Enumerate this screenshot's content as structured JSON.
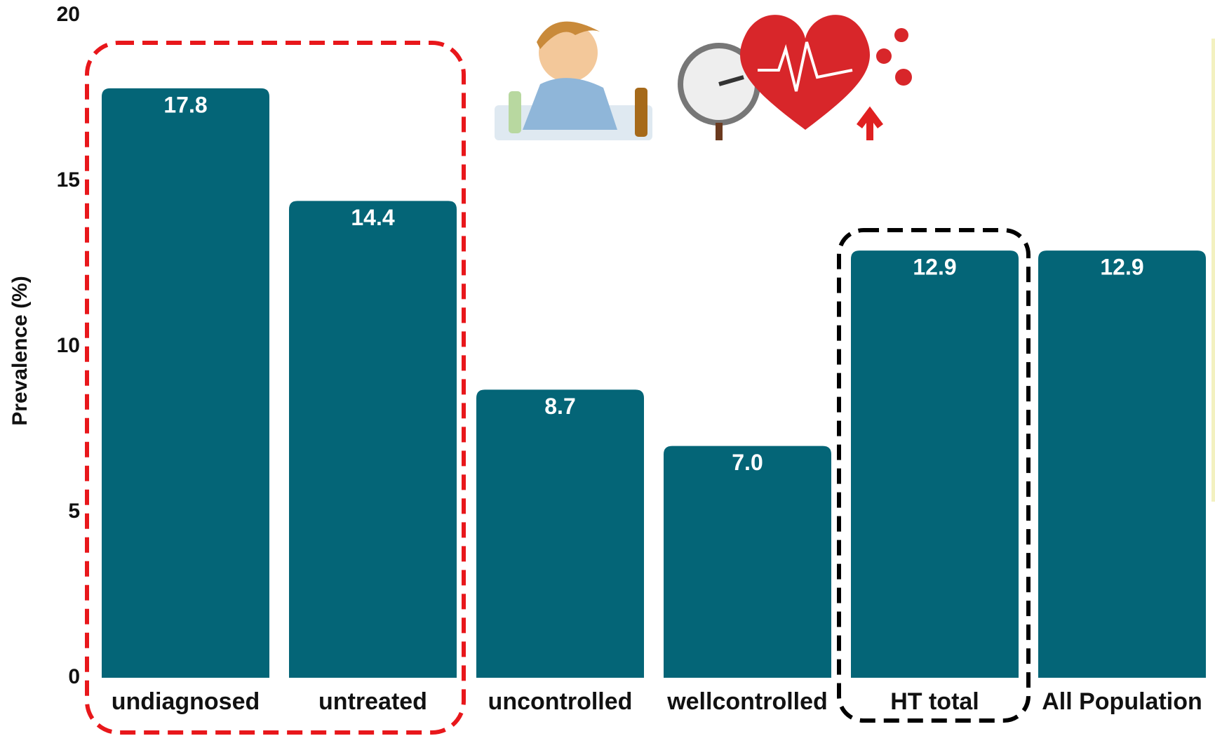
{
  "chart_data": {
    "type": "bar",
    "y_label": "Prevalence (%)",
    "categories": [
      "undiagnosed",
      "untreated",
      "uncontrolled",
      "wellcontrolled",
      "HT total",
      "All Population"
    ],
    "values": [
      17.8,
      14.4,
      8.7,
      7.0,
      12.9,
      12.9
    ],
    "value_labels": [
      "17.8",
      "14.4",
      "8.7",
      "7.0",
      "12.9",
      "12.9"
    ],
    "color": "#046577",
    "ylim": [
      0,
      20
    ],
    "yticks": [
      0,
      5,
      10,
      15,
      20
    ],
    "grid": false
  }
}
